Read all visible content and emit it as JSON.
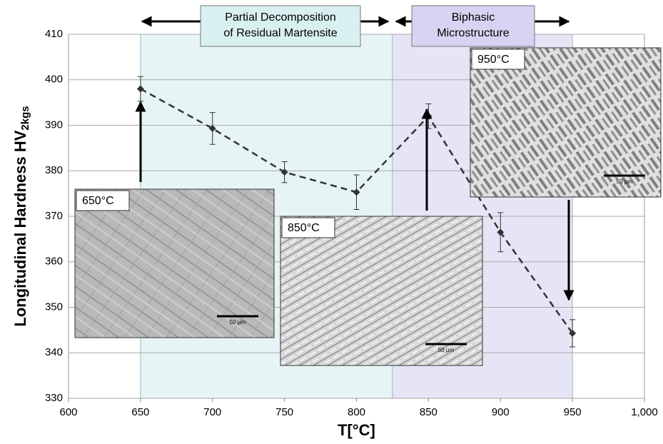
{
  "chart_data": {
    "type": "line",
    "x_label": "T[°C]",
    "y_label": "Longitudinal Hardness  HV",
    "y_label_subscript": "2kgs",
    "x": [
      650,
      700,
      750,
      800,
      850,
      900,
      950
    ],
    "series": [
      {
        "color": "#333333",
        "values": [
          398,
          389.3,
          379.7,
          375.3,
          392,
          366.5,
          344.3
        ],
        "errors": [
          2.7,
          3.5,
          2.3,
          3.8,
          2.7,
          4.3,
          3
        ]
      }
    ],
    "xlim": [
      600,
      1000
    ],
    "xticks": [
      600,
      650,
      700,
      750,
      800,
      850,
      900,
      950,
      {
        "value": 1000,
        "label": "1,000"
      }
    ],
    "ylim": [
      330,
      410
    ],
    "yticks": [
      330,
      340,
      350,
      360,
      370,
      380,
      390,
      400,
      410
    ],
    "grid": true,
    "regions": [
      {
        "label": [
          "Partial Decomposition",
          "of Residual Martensite"
        ],
        "xrange": [
          650,
          825
        ],
        "color": "#e6f4f5",
        "label_color": "#d9f0f1"
      },
      {
        "label": [
          "Biphasic",
          "Microstructure"
        ],
        "xrange": [
          825,
          950
        ],
        "color": "#e6e5f6",
        "label_color": "#d6d4f2"
      }
    ],
    "insets": [
      {
        "label": "650°C",
        "scale_bar": "50 µm"
      },
      {
        "label": "850°C",
        "scale_bar": "50 µm"
      },
      {
        "label": "950°C",
        "scale_bar": "50 µm"
      }
    ]
  }
}
